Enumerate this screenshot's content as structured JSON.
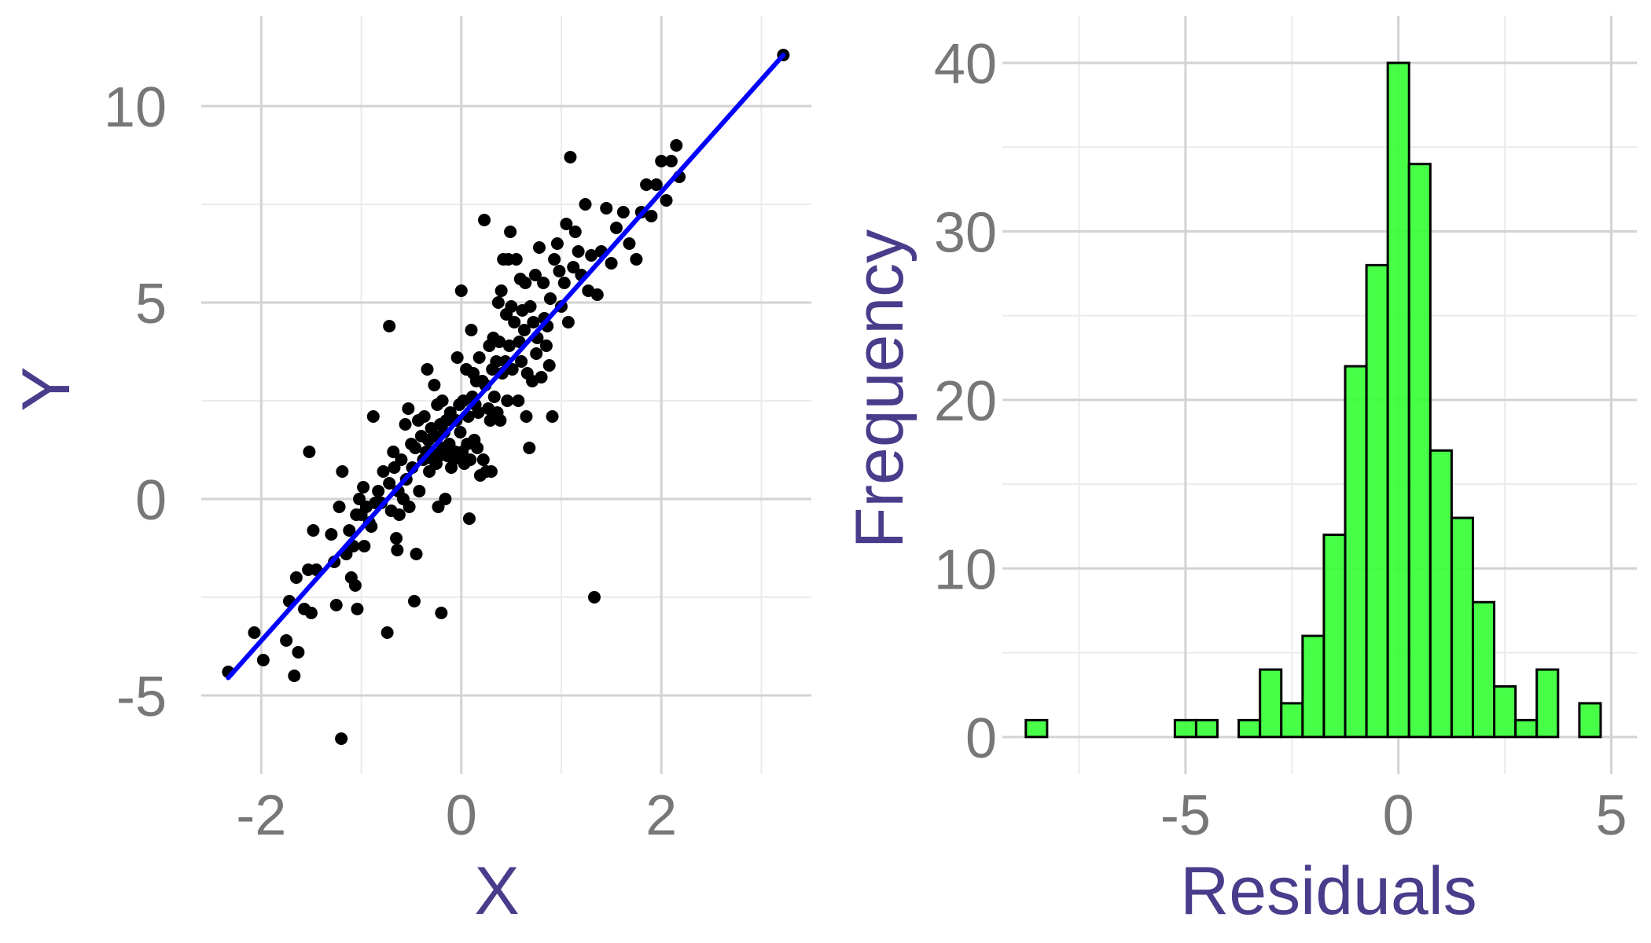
{
  "colors": {
    "grid_major": "#d3d3d3",
    "grid_minor": "#ebebeb",
    "tick_label": "#777777",
    "axis_title": "#483d8b",
    "points": "#000000",
    "fit_line": "#0000ff",
    "hist_fill": "#33ff33",
    "hist_fill_opacity": 0.9,
    "hist_outline": "#000000"
  },
  "chart_data": [
    {
      "type": "scatter",
      "title": "",
      "xlabel": "X",
      "ylabel": "Y",
      "xlim": [
        -2.6,
        3.5
      ],
      "ylim": [
        -7,
        12.3
      ],
      "xticks": [
        -2,
        0,
        2
      ],
      "xtick_labels": [
        "-2",
        "0",
        "2"
      ],
      "yticks": [
        -5,
        0,
        5,
        10
      ],
      "ytick_labels": [
        "-5",
        "0",
        "5",
        "10"
      ],
      "grid": true,
      "series": [
        {
          "kind": "points",
          "points": [
            [
              -2.33,
              -4.4
            ],
            [
              -2.07,
              -3.4
            ],
            [
              -1.98,
              -4.1
            ],
            [
              -1.75,
              -3.6
            ],
            [
              -1.72,
              -2.6
            ],
            [
              -1.67,
              -4.5
            ],
            [
              -1.63,
              -3.9
            ],
            [
              -1.65,
              -2.0
            ],
            [
              -1.57,
              -2.8
            ],
            [
              -1.53,
              -1.8
            ],
            [
              -1.5,
              -2.9
            ],
            [
              -1.48,
              -0.8
            ],
            [
              -1.45,
              -1.8
            ],
            [
              -1.52,
              1.2
            ],
            [
              -1.3,
              -0.9
            ],
            [
              -1.27,
              -1.6
            ],
            [
              -1.25,
              -2.7
            ],
            [
              -1.22,
              -0.2
            ],
            [
              -1.2,
              -6.1
            ],
            [
              -1.19,
              0.7
            ],
            [
              -1.15,
              -1.4
            ],
            [
              -1.12,
              -0.8
            ],
            [
              -1.1,
              -2.0
            ],
            [
              -1.08,
              -1.2
            ],
            [
              -1.06,
              -2.2
            ],
            [
              -1.05,
              -0.4
            ],
            [
              -1.04,
              -2.8
            ],
            [
              -1.02,
              0.0
            ],
            [
              -1.0,
              -0.4
            ],
            [
              -0.98,
              0.3
            ],
            [
              -0.97,
              -1.2
            ],
            [
              -0.95,
              -0.2
            ],
            [
              -0.92,
              -0.6
            ],
            [
              -0.9,
              -0.7
            ],
            [
              -0.88,
              2.1
            ],
            [
              -0.86,
              -0.1
            ],
            [
              -0.83,
              0.2
            ],
            [
              -0.8,
              -0.1
            ],
            [
              -0.78,
              0.7
            ],
            [
              -0.74,
              -3.4
            ],
            [
              -0.72,
              4.4
            ],
            [
              -0.72,
              0.4
            ],
            [
              -0.7,
              -0.3
            ],
            [
              -0.68,
              1.2
            ],
            [
              -0.67,
              0.8
            ],
            [
              -0.65,
              -1.0
            ],
            [
              -0.64,
              -1.3
            ],
            [
              -0.63,
              0.2
            ],
            [
              -0.62,
              -0.4
            ],
            [
              -0.6,
              1.0
            ],
            [
              -0.58,
              0.0
            ],
            [
              -0.56,
              1.9
            ],
            [
              -0.55,
              0.5
            ],
            [
              -0.53,
              2.3
            ],
            [
              -0.52,
              -0.2
            ],
            [
              -0.5,
              1.4
            ],
            [
              -0.49,
              0.8
            ],
            [
              -0.47,
              -2.6
            ],
            [
              -0.46,
              1.3
            ],
            [
              -0.45,
              -1.4
            ],
            [
              -0.43,
              2.0
            ],
            [
              -0.42,
              0.2
            ],
            [
              -0.4,
              1.6
            ],
            [
              -0.38,
              1.0
            ],
            [
              -0.37,
              2.1
            ],
            [
              -0.35,
              1.2
            ],
            [
              -0.34,
              3.3
            ],
            [
              -0.33,
              1.5
            ],
            [
              -0.32,
              0.7
            ],
            [
              -0.3,
              1.8
            ],
            [
              -0.29,
              1.2
            ],
            [
              -0.28,
              1.0
            ],
            [
              -0.27,
              2.9
            ],
            [
              -0.26,
              1.6
            ],
            [
              -0.25,
              0.9
            ],
            [
              -0.24,
              2.4
            ],
            [
              -0.23,
              -0.2
            ],
            [
              -0.22,
              1.1
            ],
            [
              -0.21,
              1.9
            ],
            [
              -0.2,
              -2.9
            ],
            [
              -0.19,
              2.5
            ],
            [
              -0.18,
              1.3
            ],
            [
              -0.17,
              1.7
            ],
            [
              -0.16,
              0.0
            ],
            [
              -0.15,
              2.0
            ],
            [
              -0.14,
              1.1
            ],
            [
              -0.12,
              1.4
            ],
            [
              -0.11,
              2.2
            ],
            [
              -0.1,
              0.8
            ],
            [
              -0.08,
              1.0
            ],
            [
              -0.06,
              1.2
            ],
            [
              -0.05,
              2.0
            ],
            [
              -0.04,
              3.6
            ],
            [
              -0.03,
              1.1
            ],
            [
              -0.02,
              2.4
            ],
            [
              -0.01,
              1.7
            ],
            [
              0.0,
              5.3
            ],
            [
              0.01,
              1.2
            ],
            [
              0.02,
              2.5
            ],
            [
              0.03,
              0.9
            ],
            [
              0.05,
              3.3
            ],
            [
              0.06,
              1.4
            ],
            [
              0.07,
              2.1
            ],
            [
              0.08,
              -0.5
            ],
            [
              0.09,
              1.0
            ],
            [
              0.1,
              4.3
            ],
            [
              0.11,
              2.6
            ],
            [
              0.12,
              3.2
            ],
            [
              0.13,
              1.5
            ],
            [
              0.14,
              2.4
            ],
            [
              0.15,
              3.0
            ],
            [
              0.16,
              1.3
            ],
            [
              0.17,
              2.2
            ],
            [
              0.18,
              3.6
            ],
            [
              0.19,
              0.6
            ],
            [
              0.21,
              3.0
            ],
            [
              0.22,
              1.0
            ],
            [
              0.23,
              7.1
            ],
            [
              0.24,
              2.9
            ],
            [
              0.25,
              0.7
            ],
            [
              0.27,
              2.3
            ],
            [
              0.28,
              3.9
            ],
            [
              0.29,
              2.0
            ],
            [
              0.3,
              0.7
            ],
            [
              0.31,
              3.3
            ],
            [
              0.32,
              4.1
            ],
            [
              0.33,
              2.6
            ],
            [
              0.35,
              3.5
            ],
            [
              0.36,
              2.2
            ],
            [
              0.37,
              5.0
            ],
            [
              0.38,
              4.0
            ],
            [
              0.39,
              2.0
            ],
            [
              0.4,
              5.3
            ],
            [
              0.41,
              3.2
            ],
            [
              0.42,
              6.1
            ],
            [
              0.44,
              3.5
            ],
            [
              0.45,
              4.7
            ],
            [
              0.46,
              2.5
            ],
            [
              0.47,
              6.1
            ],
            [
              0.48,
              3.9
            ],
            [
              0.49,
              6.8
            ],
            [
              0.5,
              4.9
            ],
            [
              0.51,
              3.3
            ],
            [
              0.53,
              4.5
            ],
            [
              0.55,
              6.1
            ],
            [
              0.57,
              2.5
            ],
            [
              0.58,
              4.0
            ],
            [
              0.59,
              5.6
            ],
            [
              0.6,
              3.5
            ],
            [
              0.61,
              4.8
            ],
            [
              0.63,
              4.3
            ],
            [
              0.64,
              5.5
            ],
            [
              0.65,
              2.1
            ],
            [
              0.66,
              3.2
            ],
            [
              0.68,
              1.3
            ],
            [
              0.69,
              4.9
            ],
            [
              0.71,
              3.0
            ],
            [
              0.72,
              4.5
            ],
            [
              0.74,
              5.7
            ],
            [
              0.75,
              3.7
            ],
            [
              0.76,
              4.1
            ],
            [
              0.78,
              6.4
            ],
            [
              0.8,
              3.1
            ],
            [
              0.82,
              5.5
            ],
            [
              0.83,
              4.6
            ],
            [
              0.85,
              3.9
            ],
            [
              0.86,
              4.4
            ],
            [
              0.88,
              3.4
            ],
            [
              0.89,
              5.1
            ],
            [
              0.91,
              2.1
            ],
            [
              0.93,
              6.1
            ],
            [
              0.96,
              6.5
            ],
            [
              0.98,
              5.8
            ],
            [
              1.0,
              4.9
            ],
            [
              1.03,
              5.5
            ],
            [
              1.05,
              7.0
            ],
            [
              1.07,
              4.5
            ],
            [
              1.09,
              8.7
            ],
            [
              1.12,
              5.9
            ],
            [
              1.14,
              6.8
            ],
            [
              1.17,
              6.3
            ],
            [
              1.2,
              5.7
            ],
            [
              1.24,
              7.5
            ],
            [
              1.27,
              5.3
            ],
            [
              1.3,
              6.2
            ],
            [
              1.33,
              -2.5
            ],
            [
              1.36,
              5.2
            ],
            [
              1.4,
              6.3
            ],
            [
              1.45,
              7.4
            ],
            [
              1.5,
              6.0
            ],
            [
              1.55,
              6.9
            ],
            [
              1.62,
              7.3
            ],
            [
              1.68,
              6.5
            ],
            [
              1.75,
              6.1
            ],
            [
              1.8,
              7.3
            ],
            [
              1.85,
              8.0
            ],
            [
              1.9,
              7.2
            ],
            [
              1.95,
              8.0
            ],
            [
              2.0,
              8.6
            ],
            [
              2.05,
              7.6
            ],
            [
              2.1,
              8.6
            ],
            [
              2.15,
              9.0
            ],
            [
              2.18,
              8.2
            ],
            [
              3.22,
              11.3
            ]
          ]
        },
        {
          "kind": "line",
          "x": [
            -2.33,
            3.22
          ],
          "y": [
            -4.55,
            11.3
          ]
        }
      ]
    },
    {
      "type": "bar",
      "title": "",
      "xlabel": "Residuals",
      "ylabel": "Frequency",
      "xlim": [
        -9.3,
        5.6
      ],
      "ylim": [
        -2.2,
        42.8
      ],
      "xticks": [
        -5,
        0,
        5
      ],
      "xtick_labels": [
        "-5",
        "0",
        "5"
      ],
      "yticks": [
        0,
        10,
        20,
        30,
        40
      ],
      "ytick_labels": [
        "0",
        "10",
        "20",
        "30",
        "40"
      ],
      "grid": true,
      "bin_start": -8.75,
      "bin_width": 0.5,
      "values": [
        1,
        0,
        0,
        0,
        0,
        0,
        0,
        1,
        1,
        0,
        1,
        4,
        2,
        6,
        12,
        22,
        28,
        40,
        34,
        17,
        13,
        8,
        3,
        1,
        4,
        0,
        2
      ]
    }
  ]
}
